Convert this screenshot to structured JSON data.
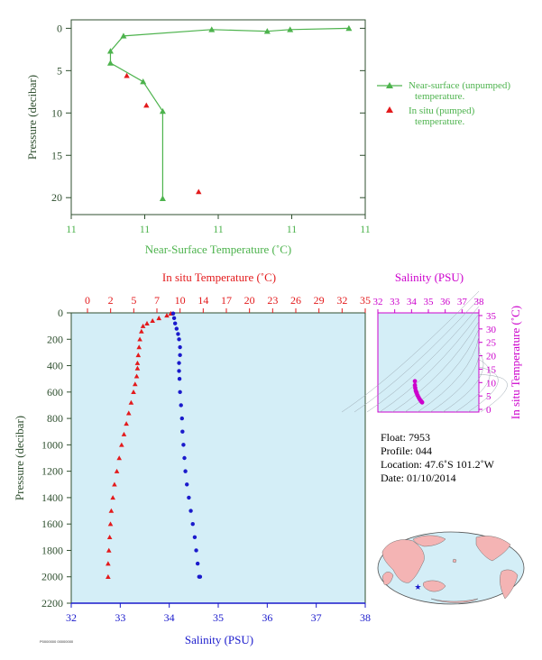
{
  "colors": {
    "near_surface": "#4db34d",
    "in_situ": "#e31a1c",
    "salinity": "#1a1acc",
    "magenta": "#cc00cc",
    "panel_bg": "#d4eef7",
    "axis_dark": "#2f4f2f"
  },
  "chart_data": [
    {
      "type": "line",
      "ylabel": "Pressure (decibar)",
      "xlabel": "Near-Surface Temperature (˚C)",
      "xticks": [
        "11",
        "11",
        "11",
        "11",
        "11"
      ],
      "yticks": [
        "0",
        "5",
        "10",
        "15",
        "20"
      ],
      "ylim": [
        22,
        -1
      ],
      "xlim": [
        11.0,
        11.45
      ],
      "legend": [
        "Near-surface (unpumped) temperature.",
        "In situ (pumped) temperature."
      ],
      "series": [
        {
          "name": "Near-surface (unpumped) temperature.",
          "x": [
            11.425,
            11.335,
            11.3,
            11.215,
            11.08,
            11.06,
            11.06,
            11.11,
            11.14,
            11.14
          ],
          "y": [
            0.0,
            0.15,
            0.35,
            0.15,
            0.9,
            2.7,
            4.1,
            6.3,
            9.8,
            20.1
          ]
        },
        {
          "name": "In situ (pumped) temperature.",
          "x": [
            11.085,
            11.115,
            11.195
          ],
          "y": [
            5.6,
            9.1,
            19.3
          ]
        }
      ]
    },
    {
      "type": "line",
      "ylabel": "Pressure (decibar)",
      "top_xlabel": "In situ Temperature (˚C)",
      "bottom_xlabel": "Salinity (PSU)",
      "top_xticks": [
        "0",
        "2",
        "5",
        "7",
        "10",
        "14",
        "17",
        "20",
        "23",
        "26",
        "29",
        "32",
        "35"
      ],
      "bottom_xticks": [
        "32",
        "33",
        "34",
        "35",
        "36",
        "37",
        "38"
      ],
      "yticks": [
        "0",
        "200",
        "400",
        "600",
        "800",
        "1000",
        "1200",
        "1400",
        "1600",
        "1800",
        "2000",
        "2200"
      ],
      "ylim": [
        2200,
        0
      ],
      "series": [
        {
          "name": "In situ Temperature (˚C)",
          "x": [
            10.5,
            10.0,
            9.0,
            8.2,
            7.5,
            7.0,
            6.8,
            6.6,
            6.5,
            6.4,
            6.3,
            6.3,
            6.2,
            6.0,
            5.8,
            5.5,
            5.2,
            4.9,
            4.6,
            4.3,
            4.0,
            3.7,
            3.4,
            3.2,
            3.0,
            2.9,
            2.8,
            2.7,
            2.6,
            2.6
          ],
          "y": [
            5,
            20,
            40,
            60,
            80,
            100,
            140,
            200,
            260,
            320,
            380,
            420,
            480,
            540,
            600,
            680,
            760,
            840,
            920,
            1000,
            1100,
            1200,
            1300,
            1400,
            1500,
            1600,
            1700,
            1800,
            1900,
            2000
          ]
        },
        {
          "name": "Salinity (PSU)",
          "x": [
            34.08,
            34.1,
            34.12,
            34.15,
            34.18,
            34.2,
            34.22,
            34.22,
            34.2,
            34.2,
            34.21,
            34.22,
            34.24,
            34.26,
            34.27,
            34.29,
            34.31,
            34.33,
            34.36,
            34.4,
            34.44,
            34.48,
            34.52,
            34.55,
            34.58,
            34.61,
            34.63
          ],
          "y": [
            5,
            40,
            80,
            120,
            160,
            200,
            260,
            320,
            380,
            440,
            500,
            600,
            700,
            800,
            900,
            1000,
            1100,
            1200,
            1300,
            1400,
            1500,
            1600,
            1700,
            1800,
            1900,
            2000,
            2000
          ]
        }
      ]
    },
    {
      "type": "scatter",
      "top_xlabel": "Salinity (PSU)",
      "right_ylabel": "In situ Temperature (˚C)",
      "xticks": [
        "32",
        "33",
        "34",
        "35",
        "36",
        "37",
        "38"
      ],
      "yticks": [
        "0",
        "5",
        "10",
        "15",
        "20",
        "25",
        "30",
        "35"
      ],
      "xlim": [
        32,
        38
      ],
      "ylim": [
        -1,
        36
      ],
      "series": [
        {
          "name": "T-S",
          "x": [
            34.2,
            34.2,
            34.22,
            34.25,
            34.28,
            34.31,
            34.36,
            34.42,
            34.48,
            34.55,
            34.6,
            34.63
          ],
          "y": [
            10.5,
            9.0,
            8.0,
            7.0,
            6.5,
            6.0,
            5.2,
            4.5,
            3.8,
            3.2,
            2.8,
            2.6
          ]
        }
      ]
    }
  ],
  "info": {
    "float": "Float:  7953",
    "profile": "Profile:  044",
    "location": "Location:  47.6˚S  101.2˚W",
    "date": "Date:  01/10/2014"
  },
  "map": {
    "marker_lon": -101.2,
    "marker_lat": -47.6
  },
  "stamp": "P0000000 00000000"
}
